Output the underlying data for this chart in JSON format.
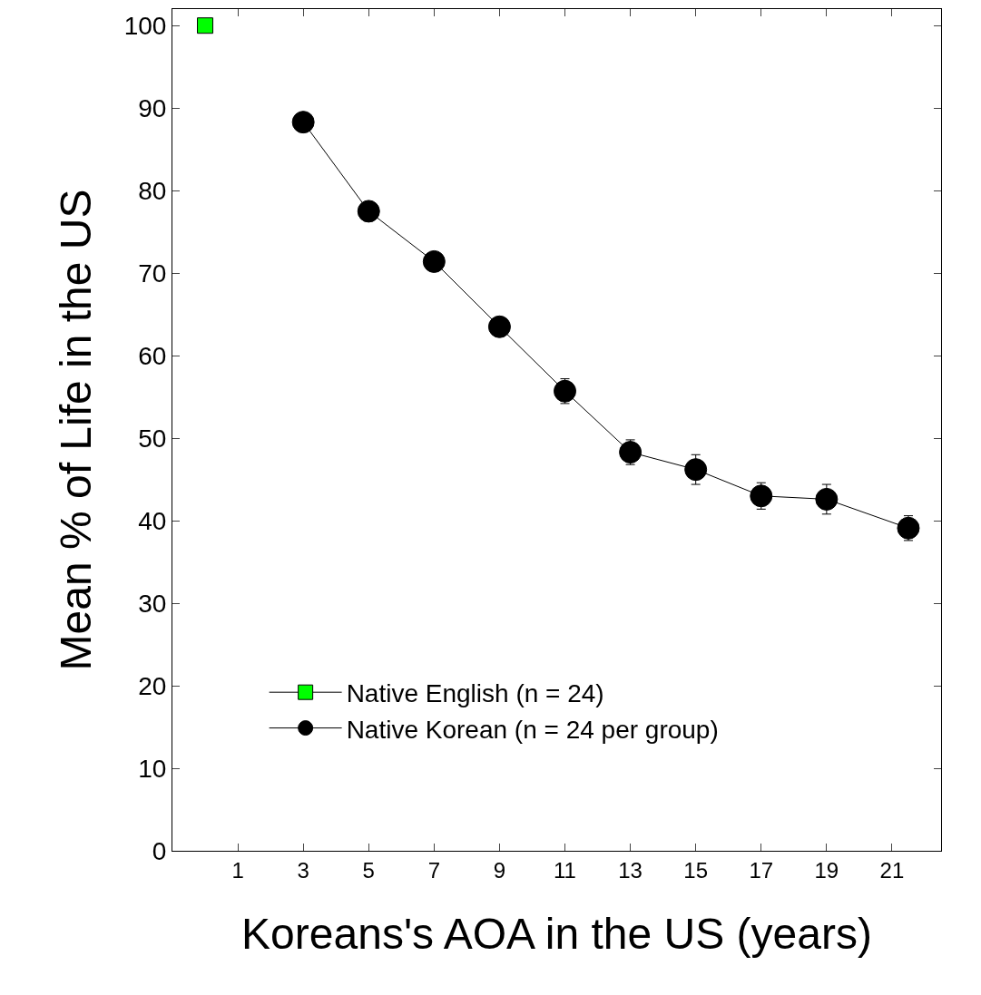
{
  "chart_data": {
    "type": "line",
    "xlabel": "Koreans's AOA in the US (years)",
    "ylabel": "Mean % of Life in the US",
    "series": [
      {
        "name": "Native English (n = 24)",
        "color": "#00ff00",
        "marker": "square",
        "x": [
          0
        ],
        "values": [
          100
        ]
      },
      {
        "name": "Native Korean (n = 24 per group)",
        "color": "#000000",
        "marker": "circle",
        "x": [
          3,
          5,
          7,
          9,
          11,
          13,
          15,
          17,
          19,
          21.5
        ],
        "values": [
          88.3,
          77.5,
          71.4,
          63.5,
          55.7,
          48.3,
          46.2,
          43.0,
          42.6,
          39.1
        ],
        "errors": [
          null,
          null,
          null,
          null,
          1.5,
          1.5,
          1.8,
          1.6,
          1.8,
          1.5
        ]
      }
    ],
    "xlim": [
      -1,
      22.5
    ],
    "xticks": [
      1,
      3,
      5,
      7,
      9,
      11,
      13,
      15,
      17,
      19,
      21
    ],
    "ylim": [
      0,
      102
    ],
    "yticks": [
      0,
      10,
      20,
      30,
      40,
      50,
      60,
      70,
      80,
      90,
      100
    ],
    "legend": "bottom"
  }
}
